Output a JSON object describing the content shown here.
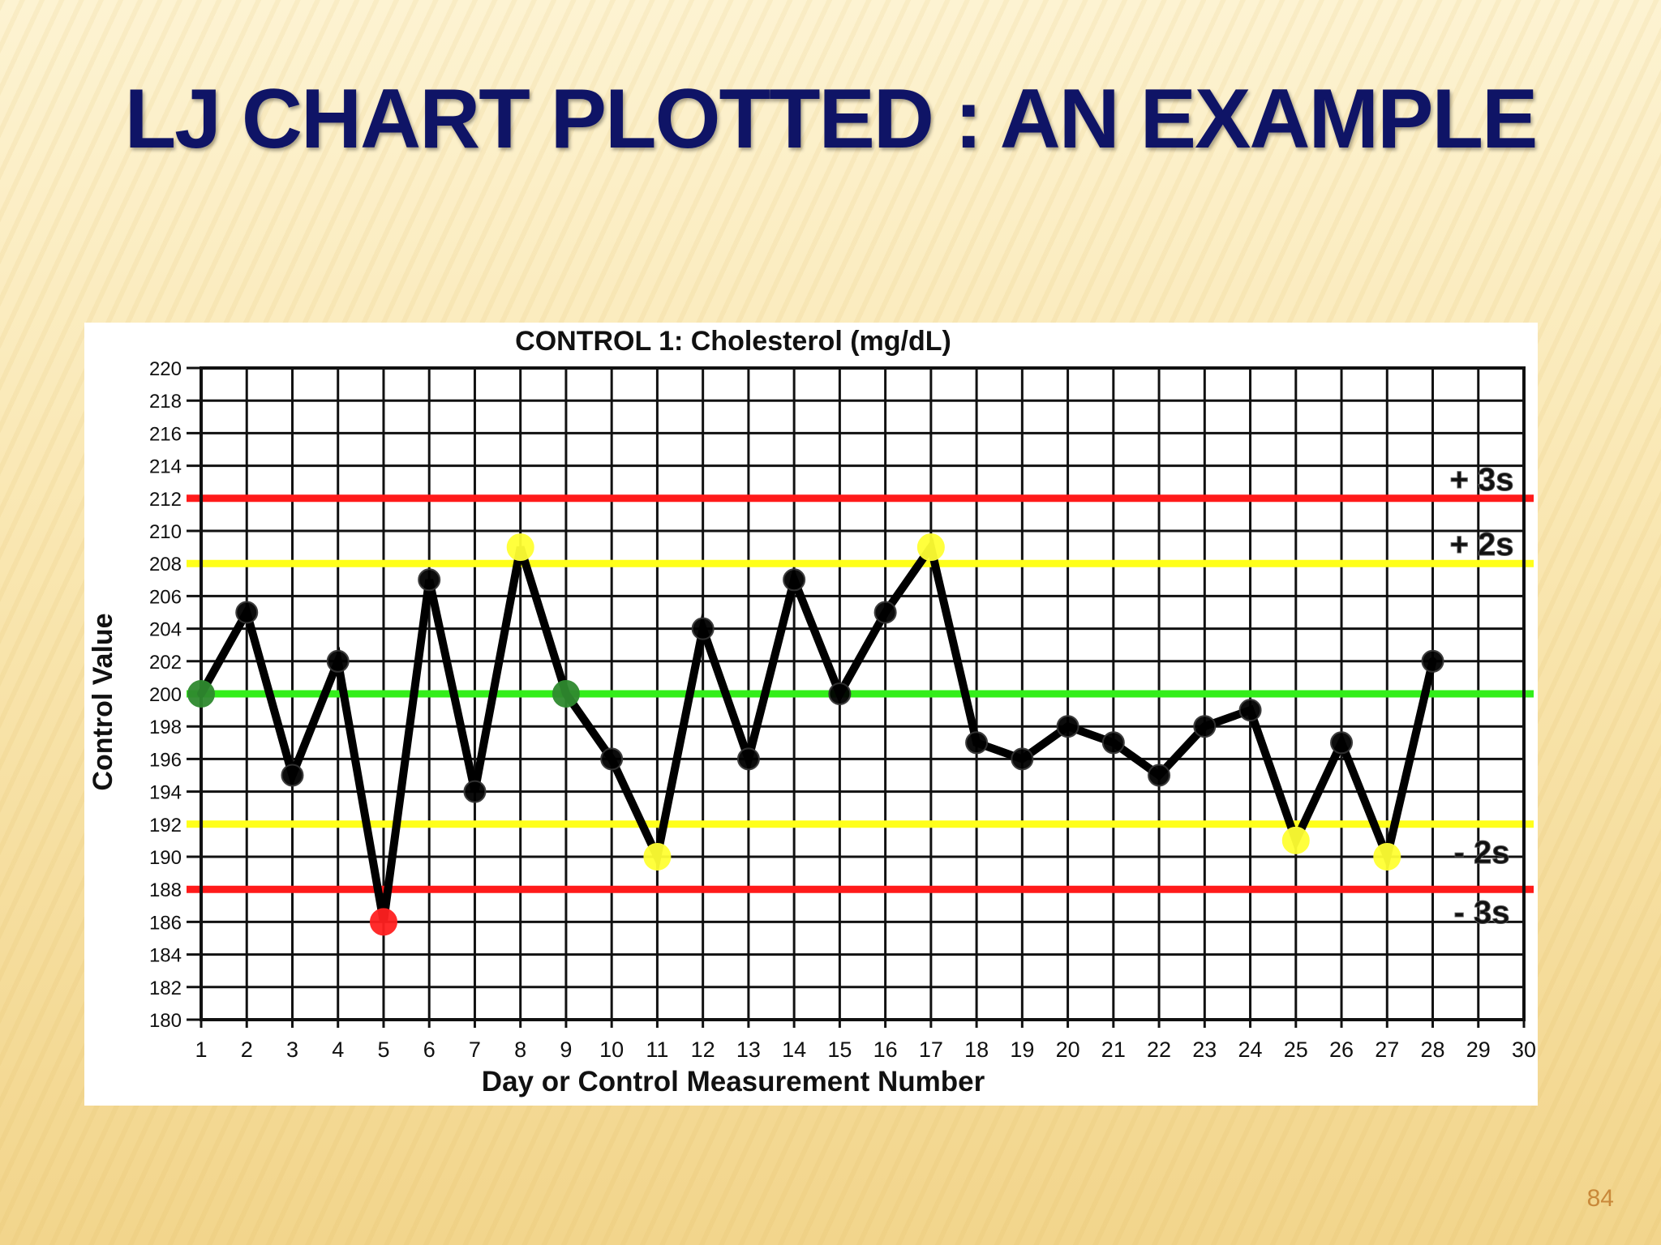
{
  "slide": {
    "title": "LJ CHART PLOTTED  : AN EXAMPLE",
    "page_number": "84"
  },
  "chart_data": {
    "type": "line",
    "title": "CONTROL 1: Cholesterol (mg/dL)",
    "xlabel": "Day or Control Measurement Number",
    "ylabel": "Control Value",
    "xlim": [
      1,
      30
    ],
    "ylim": [
      180,
      220
    ],
    "x_ticks": [
      1,
      2,
      3,
      4,
      5,
      6,
      7,
      8,
      9,
      10,
      11,
      12,
      13,
      14,
      15,
      16,
      17,
      18,
      19,
      20,
      21,
      22,
      23,
      24,
      25,
      26,
      27,
      28,
      29,
      30
    ],
    "y_ticks": [
      180,
      182,
      184,
      186,
      188,
      190,
      192,
      194,
      196,
      198,
      200,
      202,
      204,
      206,
      208,
      210,
      212,
      214,
      216,
      218,
      220
    ],
    "grid": true,
    "series": [
      {
        "x": [
          1,
          2,
          3,
          4,
          5,
          6,
          7,
          8,
          9,
          10,
          11,
          12,
          13,
          14,
          15,
          16,
          17,
          18,
          19,
          20,
          21,
          22,
          23,
          24,
          25,
          26,
          27,
          28
        ],
        "values": [
          200,
          205,
          195,
          202,
          186,
          207,
          194,
          209,
          200,
          196,
          190,
          204,
          196,
          207,
          200,
          205,
          209,
          197,
          196,
          198,
          197,
          195,
          198,
          199,
          191,
          197,
          190,
          202
        ],
        "color": "#000000"
      }
    ],
    "point_colors": [
      "#2f8a2f",
      "#000000",
      "#000000",
      "#000000",
      "#ff2020",
      "#000000",
      "#000000",
      "#ffff33",
      "#2f8a2f",
      "#000000",
      "#ffff33",
      "#000000",
      "#000000",
      "#000000",
      "#000000",
      "#000000",
      "#ffff33",
      "#000000",
      "#000000",
      "#000000",
      "#000000",
      "#000000",
      "#000000",
      "#000000",
      "#ffff33",
      "#000000",
      "#ffff33",
      "#000000"
    ],
    "limit_lines": [
      {
        "value": 212,
        "label": "+ 3s",
        "color": "#ff1a1a"
      },
      {
        "value": 208,
        "label": "+ 2s",
        "color": "#ffff1a"
      },
      {
        "value": 200,
        "label": "",
        "color": "#33ee1a"
      },
      {
        "value": 192,
        "label": "- 2s",
        "color": "#ffff1a"
      },
      {
        "value": 188,
        "label": "- 3s",
        "color": "#ff1a1a"
      }
    ]
  }
}
